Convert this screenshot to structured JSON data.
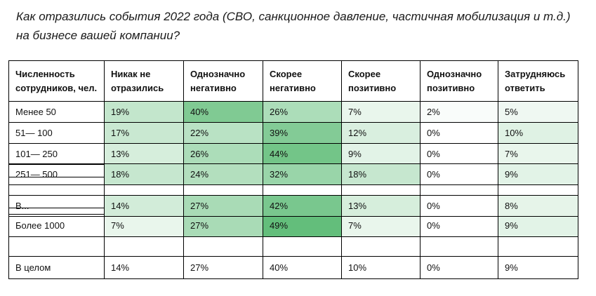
{
  "question": "Как отразились события 2022 года (СВО, санкционное давление, частичная мобилизация и т.д.) на бизнесе вашей компании?",
  "colors": {
    "max": "#63be7b",
    "min": "#ffffff",
    "border": "#000000"
  },
  "chart_data": {
    "type": "heatmap",
    "row_header": "Численность сотрудников, чел.",
    "columns": [
      "Никак не отразились",
      "Однозначно негативно",
      "Скорее негативно",
      "Скорее позитивно",
      "Однозначно позитивно",
      "Затрудняюсь ответить"
    ],
    "rows": [
      {
        "label": "Менее 50",
        "values": [
          19,
          40,
          26,
          7,
          2,
          5
        ],
        "display": [
          "19%",
          "40%",
          "26%",
          "7%",
          "2%",
          "5%"
        ]
      },
      {
        "label": "51— 100",
        "values": [
          17,
          22,
          39,
          12,
          0,
          10
        ],
        "display": [
          "17%",
          "22%",
          "39%",
          "12%",
          "0%",
          "10%"
        ]
      },
      {
        "label": "101— 250",
        "values": [
          13,
          26,
          44,
          9,
          0,
          7
        ],
        "display": [
          "13%",
          "26%",
          "44%",
          "9%",
          "0%",
          "7%"
        ]
      },
      {
        "label": "251— 500",
        "values": [
          18,
          24,
          32,
          18,
          0,
          9
        ],
        "display": [
          "18%",
          "24%",
          "32%",
          "18%",
          "0%",
          "9%"
        ]
      },
      {
        "label": "В...",
        "values": [
          14,
          27,
          42,
          13,
          0,
          8
        ],
        "display": [
          "14%",
          "27%",
          "42%",
          "13%",
          "0%",
          "8%"
        ]
      },
      {
        "label": "Более 1000",
        "values": [
          7,
          27,
          49,
          7,
          0,
          9
        ],
        "display": [
          "7%",
          "27%",
          "49%",
          "7%",
          "0%",
          "9%"
        ]
      }
    ],
    "total": {
      "label": "В целом",
      "display": [
        "14%",
        "27%",
        "40%",
        "10%",
        "0%",
        "9%"
      ]
    },
    "scale": {
      "min": 0,
      "max": 49
    }
  }
}
